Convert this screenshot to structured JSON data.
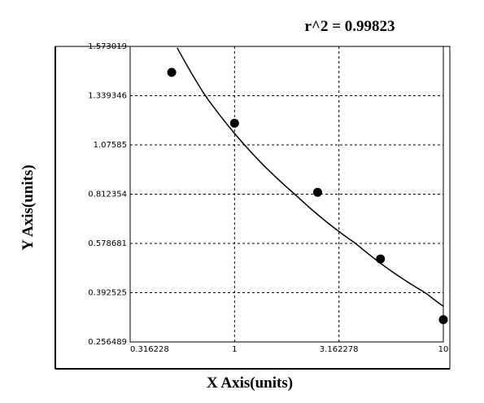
{
  "chart_data": {
    "type": "scatter",
    "title": "r^2 = 0.99823",
    "x_label": "X Axis(units)",
    "y_label": "Y Axis(units)",
    "x": [
      0.5,
      1,
      2.5,
      5,
      10
    ],
    "values": [
      1.45,
      1.192,
      0.822,
      0.52,
      0.318
    ],
    "color": "#000000",
    "xlim": [
      0.316228,
      10
    ],
    "xticks": [
      0.316228,
      1,
      3.162278,
      10
    ],
    "xscale": "log",
    "ylim": [
      0.256489,
      1.573019
    ],
    "yticks": [
      0.256489,
      0.392525,
      0.578681,
      0.812354,
      1.07585,
      1.339346,
      1.573019
    ],
    "grid": true,
    "fit_line": true
  }
}
